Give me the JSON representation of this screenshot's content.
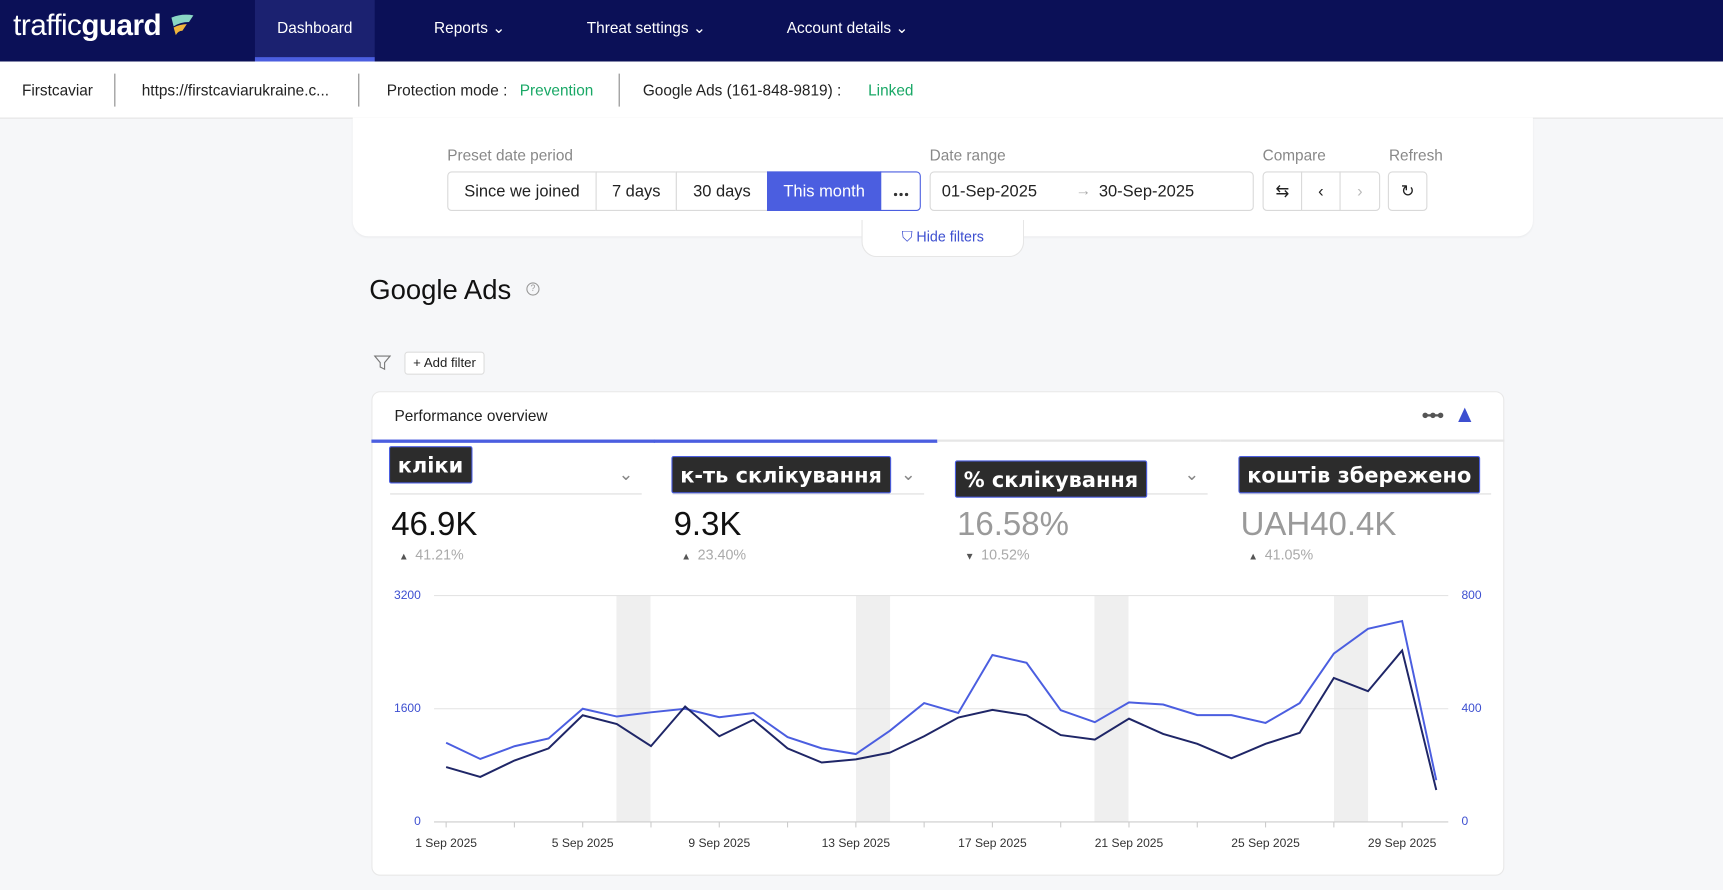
{
  "nav": {
    "logo_light": "traffic",
    "logo_bold": "guard",
    "items": [
      "Dashboard",
      "Reports",
      "Threat settings",
      "Account details"
    ]
  },
  "subbar": {
    "account": "Firstcaviar",
    "url": "https://firstcaviarukraine.c...",
    "protection_label": "Protection mode :",
    "protection_value": "Prevention",
    "ads_label": "Google Ads (161-848-9819) :",
    "ads_value": "Linked"
  },
  "filters": {
    "preset_label": "Preset date period",
    "presets": [
      "Since we joined",
      "7 days",
      "30 days",
      "This month"
    ],
    "date_range_label": "Date range",
    "date_from": "01-Sep-2025",
    "date_to": "30-Sep-2025",
    "compare_label": "Compare",
    "refresh_label": "Refresh",
    "hide_filters": "Hide filters"
  },
  "section": {
    "title": "Google Ads",
    "add_filter": "Add filter"
  },
  "panel": {
    "title": "Performance overview",
    "metrics": [
      {
        "tooltip": "кліки",
        "value": "46.9K",
        "change": "41.21%",
        "trend": "up",
        "selected": true
      },
      {
        "tooltip": "к-ть склікування",
        "value": "9.3K",
        "change": "23.40%",
        "trend": "up",
        "selected": true
      },
      {
        "tooltip": "% склікування",
        "value": "16.58%",
        "change": "10.52%",
        "trend": "down",
        "selected": false
      },
      {
        "tooltip": "коштів збережено",
        "value": "UAH40.4K",
        "change": "41.05%",
        "trend": "up",
        "selected": false
      }
    ]
  },
  "chart": {
    "type": "line",
    "categories": [
      "1 Sep 2025",
      null,
      null,
      null,
      "5 Sep 2025",
      null,
      null,
      null,
      "9 Sep 2025",
      null,
      null,
      null,
      "13 Sep 2025",
      null,
      null,
      null,
      "17 Sep 2025",
      null,
      null,
      null,
      "21 Sep 2025",
      null,
      null,
      null,
      "25 Sep 2025",
      null,
      null,
      null,
      "29 Sep 2025",
      null
    ],
    "series": [
      {
        "color": "#4b5ee0",
        "values": [
          1120,
          890,
          1070,
          1180,
          1600,
          1490,
          1550,
          1600,
          1480,
          1540,
          1200,
          1040,
          960,
          1290,
          1680,
          1540,
          2360,
          2250,
          1580,
          1410,
          1690,
          1660,
          1510,
          1510,
          1400,
          1680,
          2380,
          2730,
          2840,
          590
        ]
      },
      {
        "color": "#1f2667",
        "axis": "y2",
        "values": [
          194,
          159,
          217,
          260,
          377,
          346,
          268,
          408,
          303,
          361,
          260,
          210,
          221,
          245,
          303,
          369,
          396,
          377,
          307,
          291,
          365,
          311,
          276,
          225,
          276,
          315,
          509,
          462,
          606,
          113
        ]
      }
    ],
    "ylim": [
      0,
      3200
    ],
    "yticks": [
      0,
      1600,
      3200
    ],
    "y2lim": [
      0,
      800
    ],
    "y2ticks": [
      0,
      400,
      800
    ],
    "grid": true
  }
}
